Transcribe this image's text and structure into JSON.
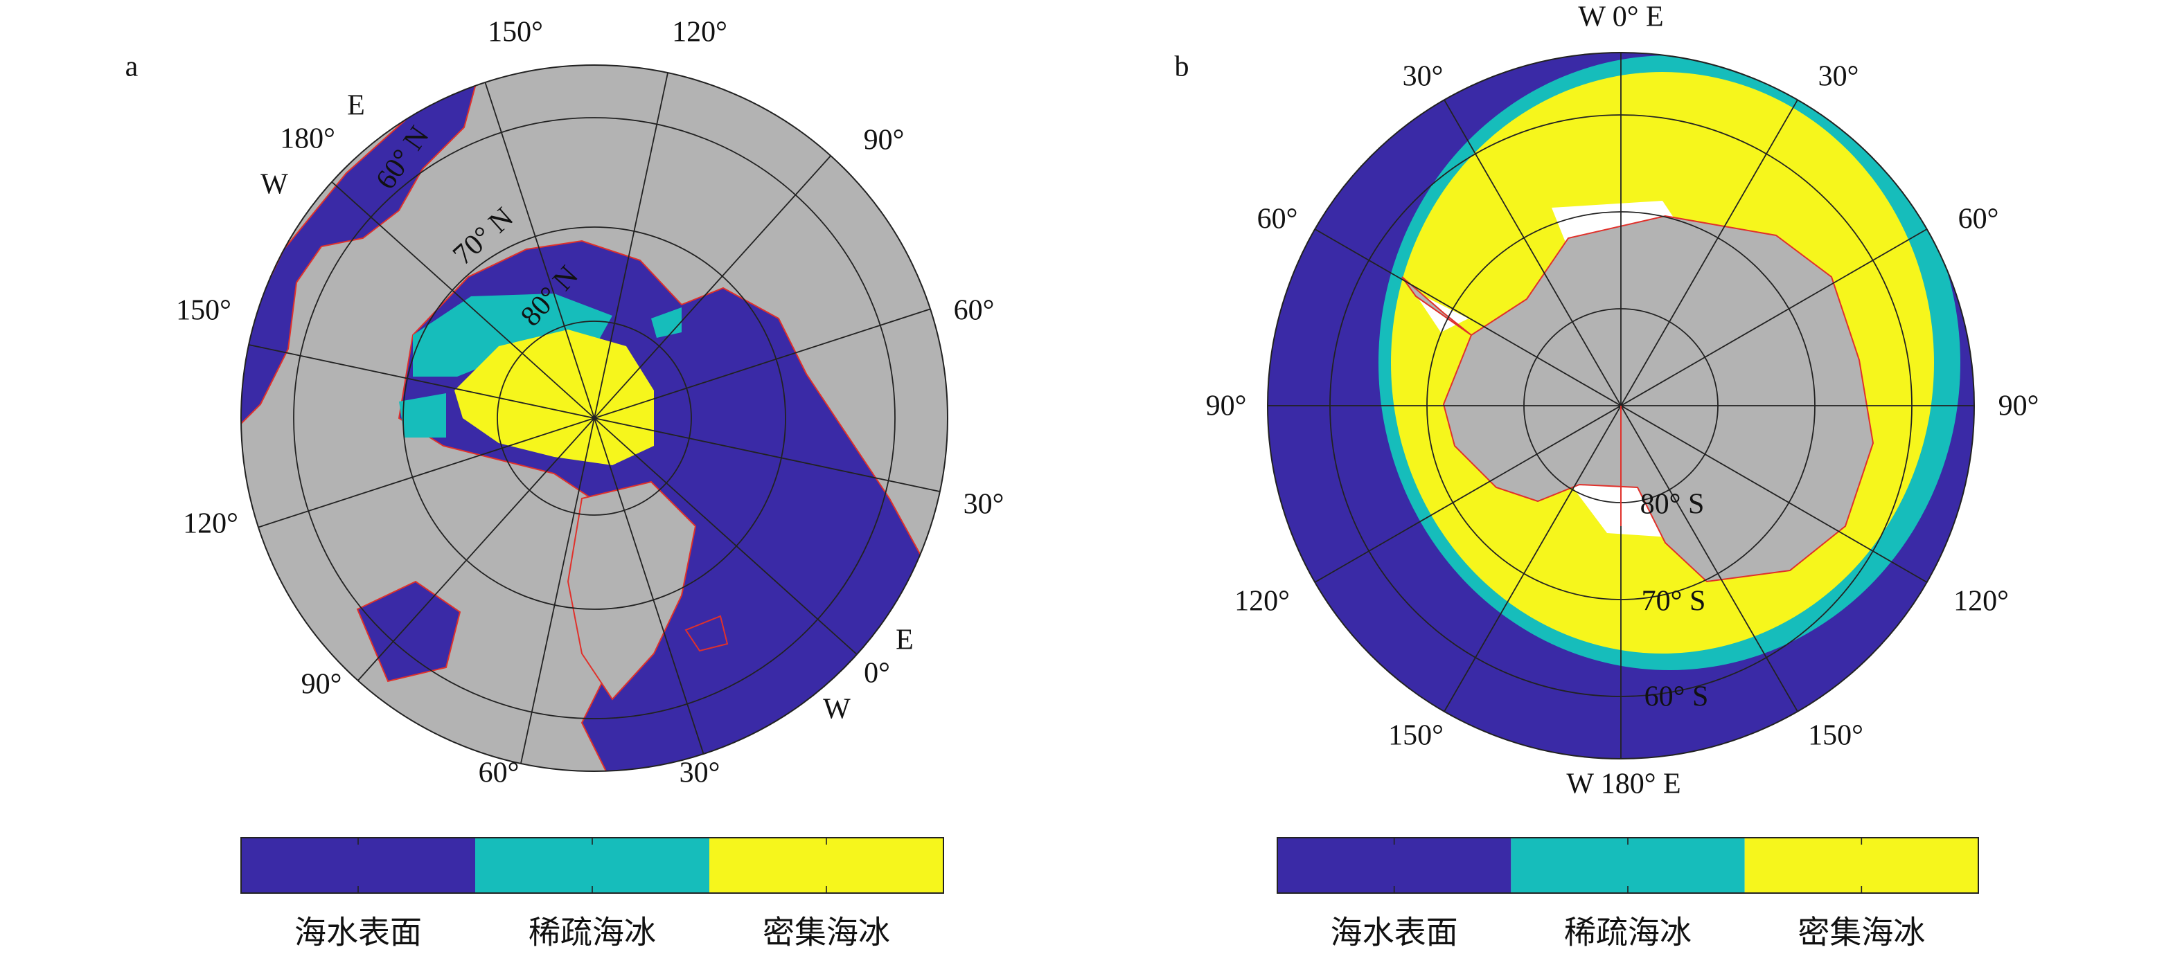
{
  "panels": [
    {
      "label": "a",
      "meridian_labels": [
        "150°",
        "120°",
        "180°",
        "E",
        "W",
        "90°",
        "150°",
        "60°",
        "120°",
        "30°",
        "90°",
        "E",
        "0°",
        "W",
        "60°",
        "30°"
      ],
      "parallel_labels": [
        "60° N",
        "70° N",
        "80° N"
      ],
      "legend": [
        {
          "label": "海水表面",
          "color": "#3a2aa6"
        },
        {
          "label": "稀疏海冰",
          "color": "#16bdbb"
        },
        {
          "label": "密集海冰",
          "color": "#f6f61c"
        }
      ]
    },
    {
      "label": "b",
      "meridian_labels": [
        "W 0° E",
        "30°",
        "30°",
        "60°",
        "60°",
        "90°",
        "90°",
        "120°",
        "120°",
        "150°",
        "150°",
        "W 180° E"
      ],
      "parallel_labels": [
        "80° S",
        "70° S",
        "60° S"
      ],
      "legend": [
        {
          "label": "海水表面",
          "color": "#3a2aa6"
        },
        {
          "label": "稀疏海冰",
          "color": "#16bdbb"
        },
        {
          "label": "密集海冰",
          "color": "#f6f61c"
        }
      ]
    }
  ]
}
